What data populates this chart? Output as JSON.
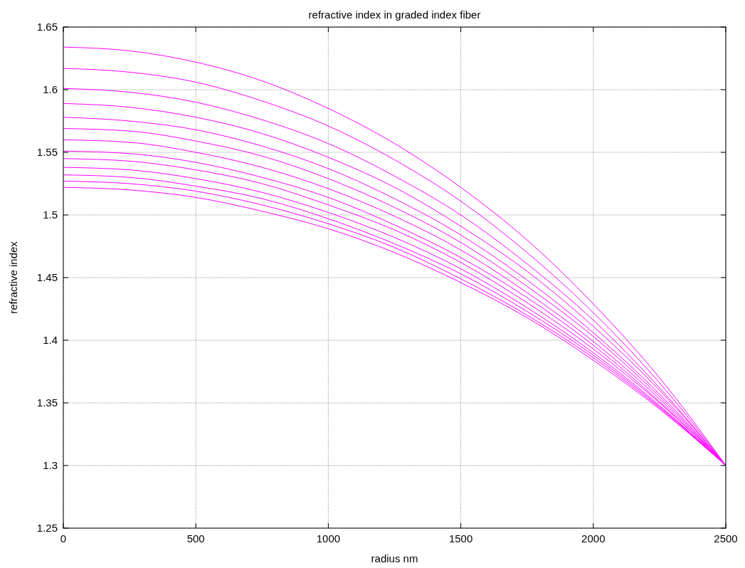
{
  "chart_data": {
    "type": "line",
    "title": "refractive index in graded index fiber",
    "xlabel": "radius nm",
    "ylabel": "refractive index",
    "x": [
      0,
      250,
      500,
      750,
      1000,
      1250,
      1500,
      1750,
      2000,
      2250,
      2500
    ],
    "series": [
      {
        "color": "#ff00ff",
        "values": [
          1.634,
          1.631,
          1.622,
          1.607,
          1.585,
          1.557,
          1.522,
          1.48,
          1.429,
          1.37,
          1.3
        ]
      },
      {
        "color": "#ff00ff",
        "values": [
          1.617,
          1.614,
          1.606,
          1.591,
          1.571,
          1.544,
          1.511,
          1.47,
          1.422,
          1.366,
          1.3
        ]
      },
      {
        "color": "#ff00ff",
        "values": [
          1.601,
          1.598,
          1.59,
          1.576,
          1.557,
          1.531,
          1.5,
          1.461,
          1.416,
          1.362,
          1.3
        ]
      },
      {
        "color": "#ff00ff",
        "values": [
          1.589,
          1.586,
          1.578,
          1.565,
          1.546,
          1.522,
          1.491,
          1.455,
          1.411,
          1.36,
          1.3
        ]
      },
      {
        "color": "#ff00ff",
        "values": [
          1.578,
          1.575,
          1.568,
          1.555,
          1.537,
          1.513,
          1.484,
          1.448,
          1.406,
          1.357,
          1.3
        ]
      },
      {
        "color": "#ff00ff",
        "values": [
          1.569,
          1.567,
          1.559,
          1.547,
          1.529,
          1.506,
          1.478,
          1.443,
          1.403,
          1.355,
          1.3
        ]
      },
      {
        "color": "#ff00ff",
        "values": [
          1.56,
          1.558,
          1.55,
          1.538,
          1.521,
          1.499,
          1.472,
          1.438,
          1.399,
          1.353,
          1.3
        ]
      },
      {
        "color": "#ff00ff",
        "values": [
          1.551,
          1.549,
          1.542,
          1.53,
          1.514,
          1.492,
          1.466,
          1.434,
          1.396,
          1.351,
          1.3
        ]
      },
      {
        "color": "#ff00ff",
        "values": [
          1.545,
          1.543,
          1.536,
          1.525,
          1.508,
          1.488,
          1.462,
          1.43,
          1.393,
          1.35,
          1.3
        ]
      },
      {
        "color": "#ff00ff",
        "values": [
          1.538,
          1.536,
          1.529,
          1.518,
          1.502,
          1.482,
          1.457,
          1.426,
          1.39,
          1.348,
          1.3
        ]
      },
      {
        "color": "#ff00ff",
        "values": [
          1.532,
          1.53,
          1.523,
          1.513,
          1.497,
          1.477,
          1.453,
          1.423,
          1.388,
          1.347,
          1.3
        ]
      },
      {
        "color": "#ff00ff",
        "values": [
          1.527,
          1.525,
          1.519,
          1.508,
          1.493,
          1.474,
          1.449,
          1.42,
          1.386,
          1.346,
          1.3
        ]
      },
      {
        "color": "#ff00ff",
        "values": [
          1.522,
          1.52,
          1.514,
          1.503,
          1.489,
          1.47,
          1.446,
          1.418,
          1.384,
          1.345,
          1.3
        ]
      }
    ],
    "xlim": [
      0,
      2500
    ],
    "xticks": [
      0,
      500,
      1000,
      1500,
      2000,
      2500
    ],
    "ylim": [
      1.25,
      1.65
    ],
    "yticks": [
      1.25,
      1.3,
      1.35,
      1.4,
      1.45,
      1.5,
      1.55,
      1.6,
      1.65
    ],
    "grid": true,
    "line_style": "solid"
  }
}
